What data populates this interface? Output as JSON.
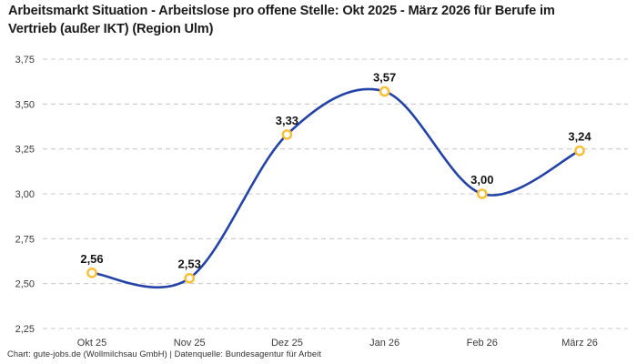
{
  "header": {
    "title": "Arbeitsmarkt Situation - Arbeitslose pro offene Stelle: Okt 2025 - März 2026 für Berufe im Vertrieb (außer IKT) (Region Ulm)"
  },
  "footer": {
    "credit": "Chart: gute-jobs.de (Wollmilchsau GmbH) | Datenquelle: Bundesagentur für Arbeit"
  },
  "chart_data": {
    "type": "line",
    "title": "Arbeitsmarkt Situation - Arbeitslose pro offene Stelle: Okt 2025 - März 2026 für Berufe im Vertrieb (außer IKT) (Region Ulm)",
    "categories": [
      "Okt 25",
      "Nov 25",
      "Dez 25",
      "Jan 26",
      "Feb 26",
      "März 26"
    ],
    "values": [
      2.56,
      2.53,
      3.33,
      3.57,
      3.0,
      3.24
    ],
    "value_labels": [
      "2,56",
      "2,53",
      "3,33",
      "3,57",
      "3,00",
      "3,24"
    ],
    "xlabel": "",
    "ylabel": "",
    "ylim": [
      2.25,
      3.75
    ],
    "y_tick_values": [
      3.75,
      3.5,
      3.25,
      3.0,
      2.75,
      2.5,
      2.25
    ],
    "y_tick_labels": [
      "3,75",
      "3,50",
      "3,25",
      "3,00",
      "2,75",
      "2,50",
      "2,25"
    ],
    "grid": "horizontal-dashed",
    "legend": "none",
    "curve": "smooth-spline",
    "colors": {
      "line": "#2443a6",
      "marker_ring": "#f9be32",
      "marker_fill": "#ffffff",
      "grid": "#c9c9c9",
      "title_text": "#1c1c1c",
      "tick_text": "#3a3a3a",
      "value_text": "#141414",
      "credit_text": "#2e2e2e",
      "background": "#ffffff"
    }
  }
}
